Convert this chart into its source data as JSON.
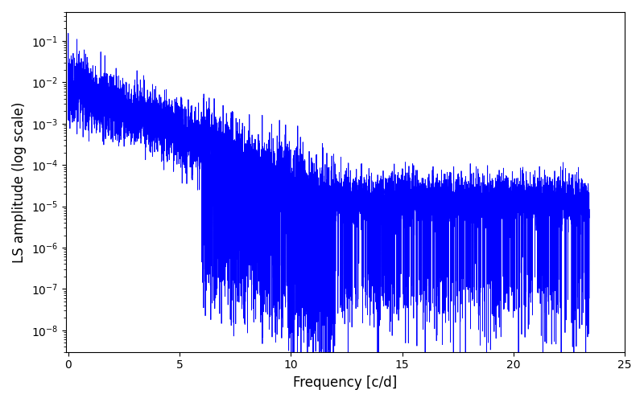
{
  "title": "",
  "xlabel": "Frequency [c/d]",
  "ylabel": "LS amplitude (log scale)",
  "xlim": [
    -0.1,
    25
  ],
  "ylim": [
    3e-09,
    0.5
  ],
  "line_color": "#0000ff",
  "line_width": 0.6,
  "background_color": "#ffffff",
  "freq_max": 23.4,
  "n_points": 8000,
  "seed": 7,
  "figsize": [
    8.0,
    5.0
  ],
  "dpi": 100,
  "yticks": [
    1e-08,
    1e-07,
    1e-06,
    1e-05,
    0.0001,
    0.001,
    0.01,
    0.1
  ],
  "xticks": [
    0,
    5,
    10,
    15,
    20,
    25
  ]
}
